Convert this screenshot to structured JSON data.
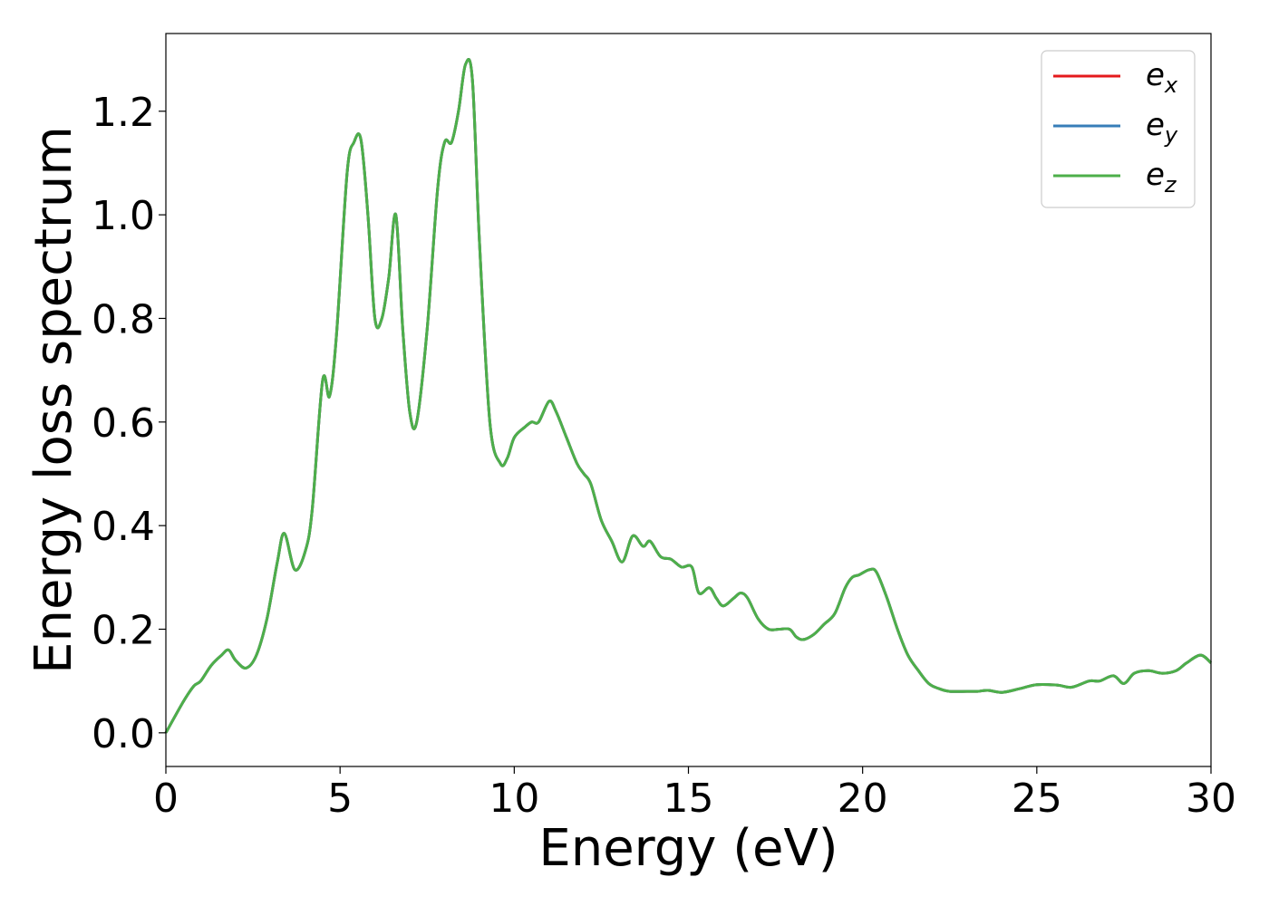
{
  "chart_data": {
    "type": "line",
    "xlabel": "Energy (eV)",
    "ylabel": "Energy loss spectrum",
    "xlim": [
      0,
      30
    ],
    "ylim": [
      -0.065,
      1.35
    ],
    "xticks": [
      0,
      5,
      10,
      15,
      20,
      25,
      30
    ],
    "xtick_labels": [
      "0",
      "5",
      "10",
      "15",
      "20",
      "25",
      "30"
    ],
    "yticks": [
      0.0,
      0.2,
      0.4,
      0.6,
      0.8,
      1.0,
      1.2
    ],
    "ytick_labels": [
      "0.0",
      "0.2",
      "0.4",
      "0.6",
      "0.8",
      "1.0",
      "1.2"
    ],
    "grid": false,
    "legend_position": "top-right",
    "x": [
      0,
      0.5,
      0.8,
      1.0,
      1.3,
      1.6,
      1.8,
      2.0,
      2.3,
      2.6,
      2.9,
      3.2,
      3.4,
      3.7,
      4.0,
      4.2,
      4.5,
      4.7,
      4.9,
      5.2,
      5.4,
      5.6,
      5.8,
      6.0,
      6.2,
      6.4,
      6.6,
      6.8,
      7.0,
      7.2,
      7.5,
      7.8,
      8.0,
      8.2,
      8.4,
      8.6,
      8.8,
      9.0,
      9.3,
      9.6,
      9.8,
      10.0,
      10.3,
      10.5,
      10.7,
      11.0,
      11.2,
      11.5,
      11.8,
      12.0,
      12.2,
      12.5,
      12.8,
      13.1,
      13.4,
      13.7,
      13.9,
      14.2,
      14.5,
      14.8,
      15.1,
      15.3,
      15.6,
      15.8,
      16.0,
      16.3,
      16.5,
      16.7,
      17.0,
      17.3,
      17.6,
      17.9,
      18.1,
      18.3,
      18.6,
      18.9,
      19.2,
      19.5,
      19.7,
      19.9,
      20.2,
      20.4,
      20.7,
      21.0,
      21.3,
      21.6,
      21.9,
      22.2,
      22.5,
      23.0,
      23.3,
      23.6,
      24.0,
      24.5,
      25.0,
      25.6,
      26.0,
      26.5,
      26.8,
      27.2,
      27.5,
      27.8,
      28.2,
      28.6,
      29.0,
      29.3,
      29.7,
      30.0
    ],
    "series": [
      {
        "name": "e_x",
        "color": "#e41a1c",
        "values": [
          0.0,
          0.06,
          0.09,
          0.1,
          0.13,
          0.15,
          0.16,
          0.14,
          0.125,
          0.15,
          0.22,
          0.33,
          0.385,
          0.315,
          0.35,
          0.43,
          0.68,
          0.65,
          0.77,
          1.08,
          1.14,
          1.145,
          1.0,
          0.8,
          0.8,
          0.88,
          1.0,
          0.78,
          0.62,
          0.6,
          0.78,
          1.05,
          1.14,
          1.14,
          1.2,
          1.29,
          1.26,
          0.95,
          0.6,
          0.52,
          0.53,
          0.57,
          0.59,
          0.6,
          0.6,
          0.64,
          0.62,
          0.57,
          0.52,
          0.5,
          0.48,
          0.41,
          0.37,
          0.33,
          0.38,
          0.36,
          0.37,
          0.34,
          0.335,
          0.32,
          0.32,
          0.27,
          0.28,
          0.26,
          0.245,
          0.26,
          0.27,
          0.26,
          0.22,
          0.2,
          0.2,
          0.2,
          0.185,
          0.18,
          0.19,
          0.21,
          0.23,
          0.28,
          0.3,
          0.305,
          0.315,
          0.31,
          0.26,
          0.2,
          0.15,
          0.12,
          0.095,
          0.085,
          0.08,
          0.08,
          0.08,
          0.082,
          0.078,
          0.085,
          0.093,
          0.092,
          0.088,
          0.1,
          0.1,
          0.11,
          0.095,
          0.115,
          0.12,
          0.115,
          0.12,
          0.135,
          0.15,
          0.135
        ]
      },
      {
        "name": "e_y",
        "color": "#377eb8",
        "values": [
          0.0,
          0.06,
          0.09,
          0.1,
          0.13,
          0.15,
          0.16,
          0.14,
          0.125,
          0.15,
          0.22,
          0.33,
          0.385,
          0.315,
          0.35,
          0.43,
          0.68,
          0.65,
          0.77,
          1.08,
          1.14,
          1.145,
          1.0,
          0.8,
          0.8,
          0.88,
          1.0,
          0.78,
          0.62,
          0.6,
          0.78,
          1.05,
          1.14,
          1.14,
          1.2,
          1.29,
          1.26,
          0.95,
          0.6,
          0.52,
          0.53,
          0.57,
          0.59,
          0.6,
          0.6,
          0.64,
          0.62,
          0.57,
          0.52,
          0.5,
          0.48,
          0.41,
          0.37,
          0.33,
          0.38,
          0.36,
          0.37,
          0.34,
          0.335,
          0.32,
          0.32,
          0.27,
          0.28,
          0.26,
          0.245,
          0.26,
          0.27,
          0.26,
          0.22,
          0.2,
          0.2,
          0.2,
          0.185,
          0.18,
          0.19,
          0.21,
          0.23,
          0.28,
          0.3,
          0.305,
          0.315,
          0.31,
          0.26,
          0.2,
          0.15,
          0.12,
          0.095,
          0.085,
          0.08,
          0.08,
          0.08,
          0.082,
          0.078,
          0.085,
          0.093,
          0.092,
          0.088,
          0.1,
          0.1,
          0.11,
          0.095,
          0.115,
          0.12,
          0.115,
          0.12,
          0.135,
          0.15,
          0.135
        ]
      },
      {
        "name": "e_z",
        "color": "#4daf4a",
        "values": [
          0.0,
          0.06,
          0.09,
          0.1,
          0.13,
          0.15,
          0.16,
          0.14,
          0.125,
          0.15,
          0.22,
          0.33,
          0.385,
          0.315,
          0.35,
          0.43,
          0.68,
          0.65,
          0.77,
          1.08,
          1.14,
          1.145,
          1.0,
          0.8,
          0.8,
          0.88,
          1.0,
          0.78,
          0.62,
          0.6,
          0.78,
          1.05,
          1.14,
          1.14,
          1.2,
          1.29,
          1.26,
          0.95,
          0.6,
          0.52,
          0.53,
          0.57,
          0.59,
          0.6,
          0.6,
          0.64,
          0.62,
          0.57,
          0.52,
          0.5,
          0.48,
          0.41,
          0.37,
          0.33,
          0.38,
          0.36,
          0.37,
          0.34,
          0.335,
          0.32,
          0.32,
          0.27,
          0.28,
          0.26,
          0.245,
          0.26,
          0.27,
          0.26,
          0.22,
          0.2,
          0.2,
          0.2,
          0.185,
          0.18,
          0.19,
          0.21,
          0.23,
          0.28,
          0.3,
          0.305,
          0.315,
          0.31,
          0.26,
          0.2,
          0.15,
          0.12,
          0.095,
          0.085,
          0.08,
          0.08,
          0.08,
          0.082,
          0.078,
          0.085,
          0.093,
          0.092,
          0.088,
          0.1,
          0.1,
          0.11,
          0.095,
          0.115,
          0.12,
          0.115,
          0.12,
          0.135,
          0.15,
          0.135
        ]
      }
    ],
    "legend": [
      {
        "base": "e",
        "sub": "x",
        "color": "#e41a1c"
      },
      {
        "base": "e",
        "sub": "y",
        "color": "#377eb8"
      },
      {
        "base": "e",
        "sub": "z",
        "color": "#4daf4a"
      }
    ]
  }
}
